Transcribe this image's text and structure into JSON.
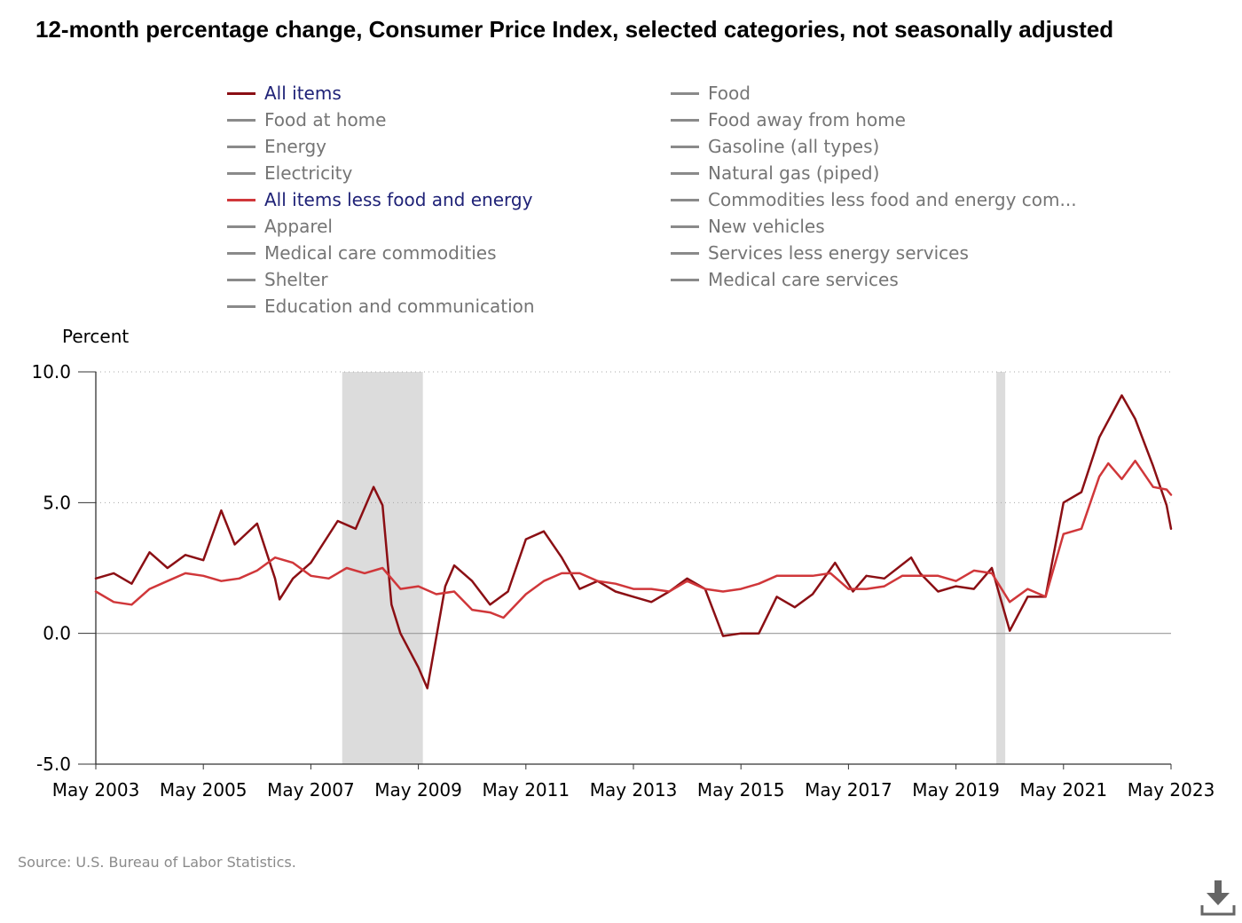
{
  "title": "12-month percentage change, Consumer Price Index, selected categories, not seasonally adjusted",
  "y_axis_title": "Percent",
  "source": "Source: U.S. Bureau of Labor Statistics.",
  "download_icon": "download-icon",
  "legend": [
    {
      "label": "All items",
      "active": true,
      "color": "#8b0f14"
    },
    {
      "label": "Food",
      "active": false,
      "color": "#8a8a8a"
    },
    {
      "label": "Food at home",
      "active": false,
      "color": "#8a8a8a"
    },
    {
      "label": "Food away from home",
      "active": false,
      "color": "#8a8a8a"
    },
    {
      "label": "Energy",
      "active": false,
      "color": "#8a8a8a"
    },
    {
      "label": "Gasoline (all types)",
      "active": false,
      "color": "#8a8a8a"
    },
    {
      "label": "Electricity",
      "active": false,
      "color": "#8a8a8a"
    },
    {
      "label": "Natural gas (piped)",
      "active": false,
      "color": "#8a8a8a"
    },
    {
      "label": "All items less food and energy",
      "active": true,
      "color": "#d0373a"
    },
    {
      "label": "Commodities less food and energy com...",
      "active": false,
      "color": "#8a8a8a"
    },
    {
      "label": "Apparel",
      "active": false,
      "color": "#8a8a8a"
    },
    {
      "label": "New vehicles",
      "active": false,
      "color": "#8a8a8a"
    },
    {
      "label": "Medical care commodities",
      "active": false,
      "color": "#8a8a8a"
    },
    {
      "label": "Services less energy services",
      "active": false,
      "color": "#8a8a8a"
    },
    {
      "label": "Shelter",
      "active": false,
      "color": "#8a8a8a"
    },
    {
      "label": "Medical care services",
      "active": false,
      "color": "#8a8a8a"
    },
    {
      "label": "Education and communication",
      "active": false,
      "color": "#8a8a8a"
    }
  ],
  "chart_data": {
    "type": "line",
    "title": "12-month percentage change, Consumer Price Index, selected categories, not seasonally adjusted",
    "ylabel": "Percent",
    "xlabel": "",
    "x_start": "May 2003",
    "x_end": "May 2023",
    "x_ticks": [
      "May 2003",
      "May 2005",
      "May 2007",
      "May 2009",
      "May 2011",
      "May 2013",
      "May 2015",
      "May 2017",
      "May 2019",
      "May 2021",
      "May 2023"
    ],
    "y_ticks": [
      "10.0",
      "5.0",
      "0.0",
      "-5.0"
    ],
    "ylim": [
      -5,
      10
    ],
    "grid": "dotted horizontal at 5.0 and 10.0; solid zero line",
    "recessions": [
      {
        "start": "Dec 2007",
        "end": "Jun 2009"
      },
      {
        "start": "Feb 2020",
        "end": "Apr 2020"
      }
    ],
    "series": [
      {
        "name": "All items",
        "color": "#8b0f14",
        "points": [
          [
            "2003-05",
            2.1
          ],
          [
            "2003-09",
            2.3
          ],
          [
            "2004-01",
            1.9
          ],
          [
            "2004-05",
            3.1
          ],
          [
            "2004-09",
            2.5
          ],
          [
            "2005-01",
            3.0
          ],
          [
            "2005-05",
            2.8
          ],
          [
            "2005-09",
            4.7
          ],
          [
            "2005-12",
            3.4
          ],
          [
            "2006-05",
            4.2
          ],
          [
            "2006-09",
            2.1
          ],
          [
            "2006-10",
            1.3
          ],
          [
            "2007-01",
            2.1
          ],
          [
            "2007-05",
            2.7
          ],
          [
            "2007-11",
            4.3
          ],
          [
            "2008-03",
            4.0
          ],
          [
            "2008-07",
            5.6
          ],
          [
            "2008-09",
            4.9
          ],
          [
            "2008-11",
            1.1
          ],
          [
            "2009-01",
            0.0
          ],
          [
            "2009-05",
            -1.3
          ],
          [
            "2009-07",
            -2.1
          ],
          [
            "2009-11",
            1.8
          ],
          [
            "2010-01",
            2.6
          ],
          [
            "2010-05",
            2.0
          ],
          [
            "2010-09",
            1.1
          ],
          [
            "2011-01",
            1.6
          ],
          [
            "2011-05",
            3.6
          ],
          [
            "2011-09",
            3.9
          ],
          [
            "2012-01",
            2.9
          ],
          [
            "2012-05",
            1.7
          ],
          [
            "2012-09",
            2.0
          ],
          [
            "2013-01",
            1.6
          ],
          [
            "2013-05",
            1.4
          ],
          [
            "2013-09",
            1.2
          ],
          [
            "2014-01",
            1.6
          ],
          [
            "2014-05",
            2.1
          ],
          [
            "2014-09",
            1.7
          ],
          [
            "2015-01",
            -0.1
          ],
          [
            "2015-05",
            0.0
          ],
          [
            "2015-09",
            0.0
          ],
          [
            "2016-01",
            1.4
          ],
          [
            "2016-05",
            1.0
          ],
          [
            "2016-09",
            1.5
          ],
          [
            "2017-02",
            2.7
          ],
          [
            "2017-06",
            1.6
          ],
          [
            "2017-09",
            2.2
          ],
          [
            "2018-01",
            2.1
          ],
          [
            "2018-07",
            2.9
          ],
          [
            "2018-09",
            2.3
          ],
          [
            "2019-01",
            1.6
          ],
          [
            "2019-05",
            1.8
          ],
          [
            "2019-09",
            1.7
          ],
          [
            "2020-01",
            2.5
          ],
          [
            "2020-05",
            0.1
          ],
          [
            "2020-09",
            1.4
          ],
          [
            "2021-01",
            1.4
          ],
          [
            "2021-05",
            5.0
          ],
          [
            "2021-09",
            5.4
          ],
          [
            "2022-01",
            7.5
          ],
          [
            "2022-06",
            9.1
          ],
          [
            "2022-09",
            8.2
          ],
          [
            "2023-01",
            6.4
          ],
          [
            "2023-04",
            4.9
          ],
          [
            "2023-05",
            4.0
          ]
        ]
      },
      {
        "name": "All items less food and energy",
        "color": "#d0373a",
        "points": [
          [
            "2003-05",
            1.6
          ],
          [
            "2003-09",
            1.2
          ],
          [
            "2004-01",
            1.1
          ],
          [
            "2004-05",
            1.7
          ],
          [
            "2004-09",
            2.0
          ],
          [
            "2005-01",
            2.3
          ],
          [
            "2005-05",
            2.2
          ],
          [
            "2005-09",
            2.0
          ],
          [
            "2006-01",
            2.1
          ],
          [
            "2006-05",
            2.4
          ],
          [
            "2006-09",
            2.9
          ],
          [
            "2007-01",
            2.7
          ],
          [
            "2007-05",
            2.2
          ],
          [
            "2007-09",
            2.1
          ],
          [
            "2008-01",
            2.5
          ],
          [
            "2008-05",
            2.3
          ],
          [
            "2008-09",
            2.5
          ],
          [
            "2009-01",
            1.7
          ],
          [
            "2009-05",
            1.8
          ],
          [
            "2009-09",
            1.5
          ],
          [
            "2010-01",
            1.6
          ],
          [
            "2010-05",
            0.9
          ],
          [
            "2010-09",
            0.8
          ],
          [
            "2010-12",
            0.6
          ],
          [
            "2011-05",
            1.5
          ],
          [
            "2011-09",
            2.0
          ],
          [
            "2012-01",
            2.3
          ],
          [
            "2012-05",
            2.3
          ],
          [
            "2012-09",
            2.0
          ],
          [
            "2013-01",
            1.9
          ],
          [
            "2013-05",
            1.7
          ],
          [
            "2013-09",
            1.7
          ],
          [
            "2014-01",
            1.6
          ],
          [
            "2014-05",
            2.0
          ],
          [
            "2014-09",
            1.7
          ],
          [
            "2015-01",
            1.6
          ],
          [
            "2015-05",
            1.7
          ],
          [
            "2015-09",
            1.9
          ],
          [
            "2016-01",
            2.2
          ],
          [
            "2016-05",
            2.2
          ],
          [
            "2016-09",
            2.2
          ],
          [
            "2017-01",
            2.3
          ],
          [
            "2017-05",
            1.7
          ],
          [
            "2017-09",
            1.7
          ],
          [
            "2018-01",
            1.8
          ],
          [
            "2018-05",
            2.2
          ],
          [
            "2018-09",
            2.2
          ],
          [
            "2019-01",
            2.2
          ],
          [
            "2019-05",
            2.0
          ],
          [
            "2019-09",
            2.4
          ],
          [
            "2020-01",
            2.3
          ],
          [
            "2020-05",
            1.2
          ],
          [
            "2020-09",
            1.7
          ],
          [
            "2021-01",
            1.4
          ],
          [
            "2021-05",
            3.8
          ],
          [
            "2021-09",
            4.0
          ],
          [
            "2022-01",
            6.0
          ],
          [
            "2022-03",
            6.5
          ],
          [
            "2022-06",
            5.9
          ],
          [
            "2022-09",
            6.6
          ],
          [
            "2023-01",
            5.6
          ],
          [
            "2023-04",
            5.5
          ],
          [
            "2023-05",
            5.3
          ]
        ]
      }
    ]
  }
}
